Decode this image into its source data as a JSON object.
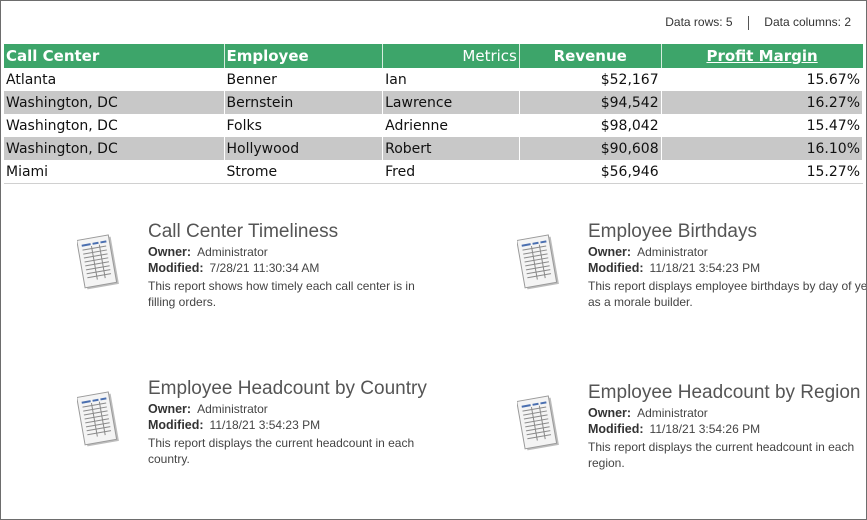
{
  "stats": {
    "rows_label": "Data rows: 5",
    "cols_label": "Data columns: 2"
  },
  "grid": {
    "headers": {
      "call_center": "Call Center",
      "employee": "Employee",
      "metrics": "Metrics",
      "revenue": "Revenue",
      "profit_margin": "Profit Margin"
    },
    "rows": [
      {
        "call_center": "Atlanta",
        "last": "Benner",
        "first": "Ian",
        "revenue": "$52,167",
        "margin": "15.67%"
      },
      {
        "call_center": "Washington, DC",
        "last": "Bernstein",
        "first": "Lawrence",
        "revenue": "$94,542",
        "margin": "16.27%"
      },
      {
        "call_center": "Washington, DC",
        "last": "Folks",
        "first": "Adrienne",
        "revenue": "$98,042",
        "margin": "15.47%"
      },
      {
        "call_center": "Washington, DC",
        "last": "Hollywood",
        "first": "Robert",
        "revenue": "$90,608",
        "margin": "16.10%"
      },
      {
        "call_center": "Miami",
        "last": "Strome",
        "first": "Fred",
        "revenue": "$56,946",
        "margin": "15.27%"
      }
    ]
  },
  "labels": {
    "owner": "Owner:",
    "modified": "Modified:"
  },
  "reports": [
    {
      "title": "Call Center Timeliness",
      "owner": "Administrator",
      "modified": "7/28/21 11:30:34 AM",
      "description": "This report shows how timely each call center is in filling orders."
    },
    {
      "title": "Employee Birthdays",
      "owner": "Administrator",
      "modified": "11/18/21 3:54:23 PM",
      "description": "This report displays employee birthdays by day of year as a morale builder."
    },
    {
      "title": "Employee Headcount by Country",
      "owner": "Administrator",
      "modified": "11/18/21 3:54:23 PM",
      "description": "This report displays the current headcount in each country."
    },
    {
      "title": "Employee Headcount by Region",
      "owner": "Administrator",
      "modified": "11/18/21 3:54:26 PM",
      "description": "This report displays the current headcount in each region."
    }
  ],
  "icons": {
    "report": "report-document-icon"
  }
}
